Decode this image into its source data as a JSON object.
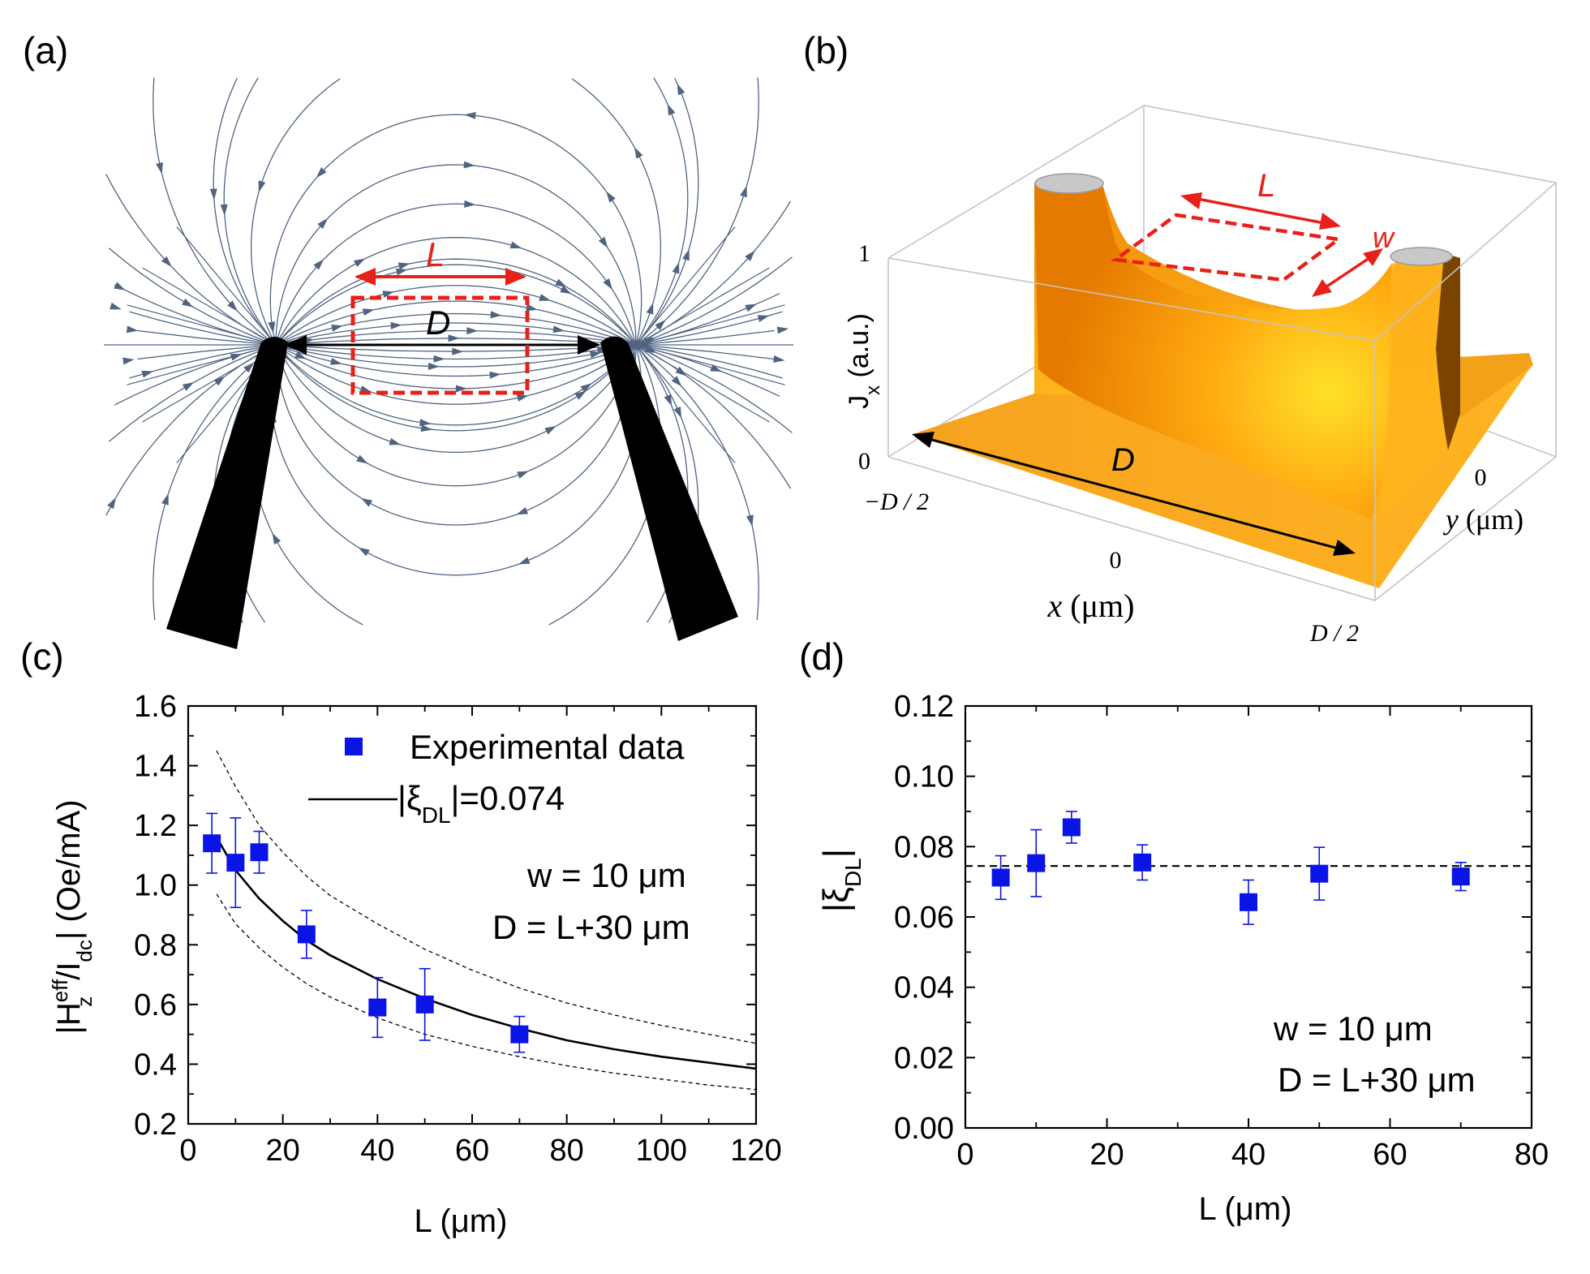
{
  "panels": {
    "a": {
      "label": "(a)",
      "text_L": "L",
      "text_D": "D"
    },
    "b": {
      "label": "(b)",
      "text_L": "L",
      "text_w": "w",
      "text_D": "D",
      "z_axis_label": "J",
      "z_axis_sub": "x",
      "z_axis_unit": " (a.u.)",
      "z_tick_top": "1",
      "z_tick_bottom": "0",
      "x_axis_label_var": "x",
      "x_axis_label_unit": " (μm)",
      "x_tick_left": "−D / 2",
      "x_tick_mid": "0",
      "x_tick_right": "D / 2",
      "y_axis_label_var": "y",
      "y_axis_label_unit": " (μm)",
      "y_tick_mid": "0"
    },
    "c": {
      "label": "(c)"
    },
    "d": {
      "label": "(d)"
    }
  },
  "colors": {
    "marker": "#0a14e6",
    "field_arrows": "#4f6480",
    "highlight_red": "#e8201a",
    "surface_light": "#ffd21a",
    "surface_dark": "#e57a00"
  },
  "chart_data": [
    {
      "panel": "c",
      "type": "scatter",
      "xlabel": "L (μm)",
      "ylabel_parts": {
        "pre": "|H",
        "sup": "eff",
        "sub": "z",
        "mid": "/I",
        "sub2": "dc",
        "post": "| (Oe/mA)"
      },
      "xlim": [
        0,
        120
      ],
      "ylim": [
        0.2,
        1.6
      ],
      "xticks": [
        0,
        20,
        40,
        60,
        80,
        100,
        120
      ],
      "yticks": [
        0.2,
        0.4,
        0.6,
        0.8,
        1.0,
        1.2,
        1.4,
        1.6
      ],
      "ytick_labels": [
        "0.2",
        "0.4",
        "0.6",
        "0.8",
        "1.0",
        "1.2",
        "1.4",
        "1.6"
      ],
      "series": [
        {
          "name": "Experimental data",
          "x": [
            5,
            10,
            15,
            25,
            40,
            50,
            70
          ],
          "y": [
            1.14,
            1.075,
            1.11,
            0.835,
            0.59,
            0.6,
            0.5
          ],
          "err_low": [
            0.1,
            0.15,
            0.07,
            0.08,
            0.1,
            0.12,
            0.06
          ],
          "err_high": [
            0.1,
            0.15,
            0.07,
            0.08,
            0.1,
            0.12,
            0.06
          ]
        }
      ],
      "fit": {
        "name": "|ξDL|=0.074",
        "name_parts": {
          "pre": "|ξ",
          "sub": "DL",
          "post": "|=0.074"
        },
        "x": [
          6,
          10,
          15,
          20,
          25,
          30,
          40,
          50,
          60,
          70,
          80,
          90,
          100,
          110,
          120
        ],
        "y": [
          1.16,
          1.05,
          0.955,
          0.88,
          0.815,
          0.765,
          0.685,
          0.62,
          0.565,
          0.52,
          0.48,
          0.45,
          0.425,
          0.405,
          0.385
        ]
      },
      "bounds_upper": {
        "x": [
          6,
          10,
          15,
          20,
          25,
          30,
          40,
          50,
          60,
          70,
          80,
          90,
          100,
          110,
          120
        ],
        "y": [
          1.45,
          1.33,
          1.2,
          1.11,
          1.03,
          0.965,
          0.87,
          0.785,
          0.715,
          0.655,
          0.605,
          0.565,
          0.53,
          0.5,
          0.47
        ]
      },
      "bounds_lower": {
        "x": [
          6,
          10,
          15,
          20,
          25,
          30,
          40,
          50,
          60,
          70,
          80,
          90,
          100,
          110,
          120
        ],
        "y": [
          0.97,
          0.87,
          0.79,
          0.725,
          0.67,
          0.625,
          0.555,
          0.5,
          0.46,
          0.425,
          0.395,
          0.37,
          0.35,
          0.33,
          0.315
        ]
      },
      "annotations": [
        "w = 10 μm",
        "D = L+30 μm"
      ],
      "legend_position": "top-right"
    },
    {
      "panel": "d",
      "type": "scatter",
      "xlabel": "L (μm)",
      "ylabel_parts": {
        "pre": "|ξ",
        "sub": "DL",
        "post": "|"
      },
      "xlim": [
        0,
        80
      ],
      "ylim": [
        0,
        0.12
      ],
      "xticks": [
        0,
        20,
        40,
        60,
        80
      ],
      "yticks": [
        0,
        0.02,
        0.04,
        0.06,
        0.08,
        0.1,
        0.12
      ],
      "ytick_labels": [
        "0.00",
        "0.02",
        "0.04",
        "0.06",
        "0.08",
        "0.10",
        "0.12"
      ],
      "series": [
        {
          "name": "",
          "x": [
            5,
            10,
            15,
            25,
            40,
            50,
            70
          ],
          "y": [
            0.0712,
            0.0753,
            0.0855,
            0.0755,
            0.0642,
            0.0723,
            0.0715
          ],
          "err_low": [
            0.0062,
            0.0095,
            0.0045,
            0.005,
            0.0063,
            0.0075,
            0.004
          ],
          "err_high": [
            0.0062,
            0.0095,
            0.0045,
            0.005,
            0.0063,
            0.0075,
            0.004
          ]
        }
      ],
      "reference_line": {
        "y": 0.0745,
        "style": "dashed"
      },
      "annotations": [
        "w = 10 μm",
        "D = L+30 μm"
      ]
    }
  ]
}
